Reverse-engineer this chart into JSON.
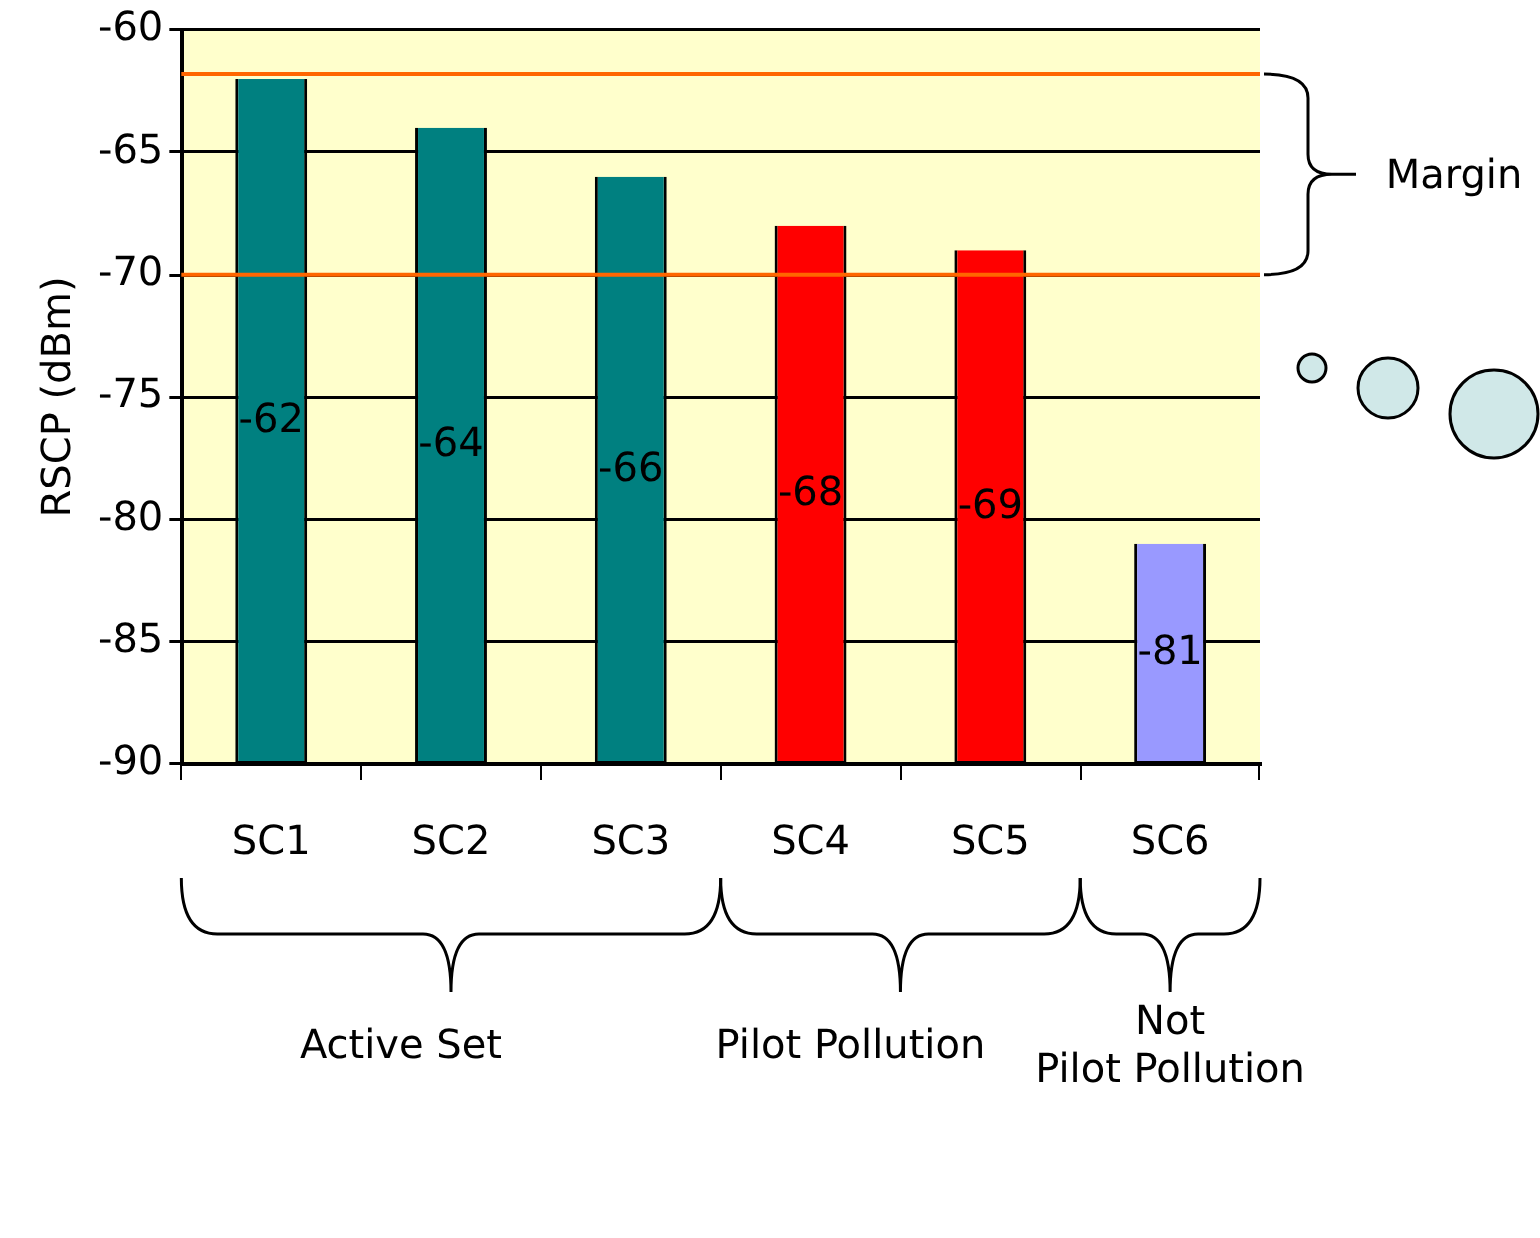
{
  "chart_data": {
    "type": "bar",
    "ylabel": "RSCP (dBm)",
    "categories": [
      "SC1",
      "SC2",
      "SC3",
      "SC4",
      "SC5",
      "SC6"
    ],
    "base": [
      -90,
      -90,
      -90,
      -90,
      -90,
      -90
    ],
    "values": [
      28,
      26,
      24,
      22,
      21,
      9
    ],
    "value_labels": [
      "-62",
      "-64",
      "-66",
      "-68",
      "-69",
      "-81"
    ],
    "colors": [
      "#008080",
      "#008080",
      "#008080",
      "#ff0000",
      "#ff0000",
      "#9999ff"
    ],
    "ylim": [
      -90,
      -60
    ],
    "yticks": [
      -90,
      -85,
      -80,
      -75,
      -70,
      -65,
      -60
    ],
    "grid": "y",
    "legend": false,
    "ref_lines": [
      {
        "axis": "y",
        "value": -61.8,
        "color": "#ff6600"
      },
      {
        "axis": "y",
        "value": -70,
        "color": "#ff6600"
      }
    ],
    "annotations": [
      "Margin",
      "Active Set",
      "Pilot Pollution",
      "Not Pilot Pollution"
    ]
  }
}
